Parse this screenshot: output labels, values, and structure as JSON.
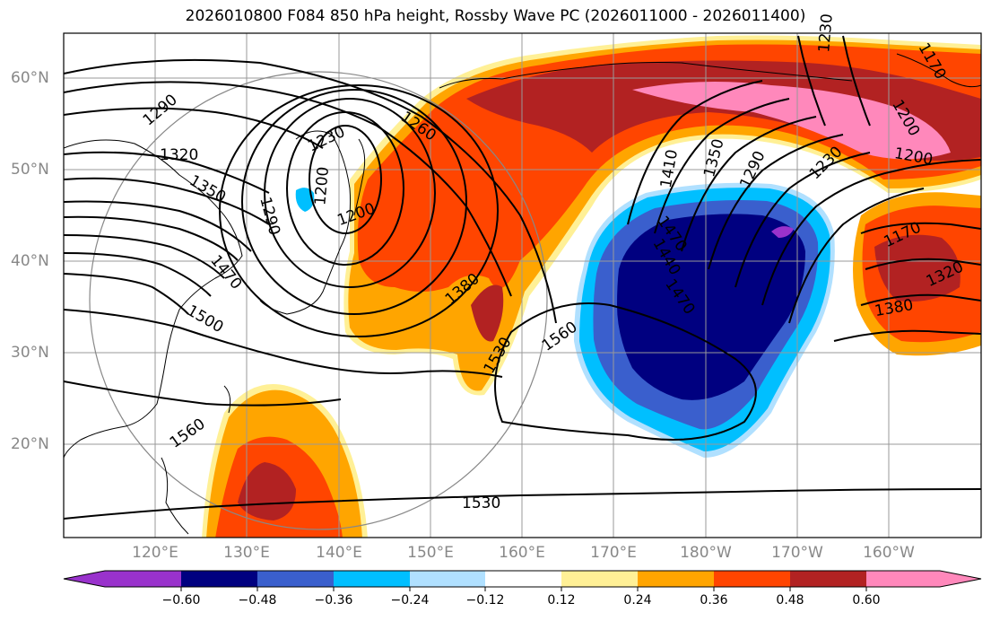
{
  "title": "2026010800 F084 850 hPa height, Rossby Wave PC (2026011000 - 2026011400)",
  "map": {
    "lat_labels": [
      "60°N",
      "50°N",
      "40°N",
      "30°N",
      "20°N"
    ],
    "lon_labels": [
      "120°E",
      "130°E",
      "140°E",
      "150°E",
      "160°E",
      "170°E",
      "180°W",
      "170°W",
      "160°W"
    ],
    "contour_labels": [
      "1290",
      "1320",
      "1230",
      "1260",
      "1200",
      "1350",
      "1290",
      "1200",
      "1470",
      "1470",
      "1500",
      "1380",
      "1530",
      "1560",
      "1560",
      "1530",
      "1410",
      "1440",
      "1470",
      "1350",
      "1290",
      "1230",
      "1200",
      "1170",
      "1320",
      "1380",
      "1200",
      "1170",
      "1230"
    ]
  },
  "colorbar": {
    "ticks": [
      "−0.60",
      "−0.48",
      "−0.36",
      "−0.24",
      "−0.12",
      "0.12",
      "0.24",
      "0.36",
      "0.48",
      "0.60"
    ],
    "colors": [
      "#9932cc",
      "#000080",
      "#3a5fcd",
      "#00bfff",
      "#b0e0ff",
      "#ffffff",
      "#fff096",
      "#ffa500",
      "#ff4500",
      "#b22222",
      "#ff88bb"
    ]
  }
}
